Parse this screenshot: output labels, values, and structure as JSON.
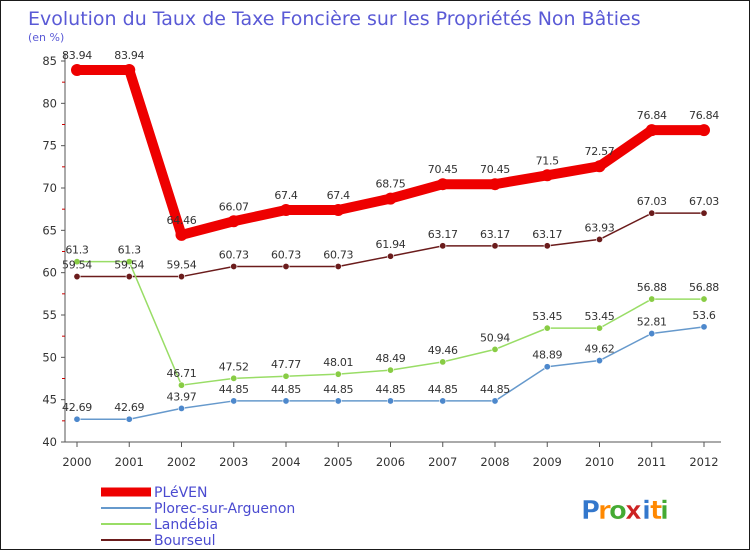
{
  "header": {
    "title": "Evolution du Taux de Taxe Foncière sur les Propriétés Non Bâties",
    "unit": "(en %)"
  },
  "logo": {
    "text": "Proxiti",
    "letters": [
      "P",
      "r",
      "o",
      "x",
      "i",
      "t",
      "i"
    ]
  },
  "colors": {
    "title": "#5a5ad6",
    "axis": "#555555",
    "tick_red": "#cc0000",
    "legend_text": "#4a4ad0"
  },
  "chart_data": {
    "type": "line",
    "title": "Evolution du Taux de Taxe Foncière sur les Propriétés Non Bâties",
    "ylabel": "(en %)",
    "xlabel": "",
    "categories": [
      "2000",
      "2001",
      "2002",
      "2003",
      "2004",
      "2005",
      "2006",
      "2007",
      "2008",
      "2009",
      "2010",
      "2011",
      "2012"
    ],
    "ylim": [
      40,
      85
    ],
    "yticks": [
      40,
      45,
      50,
      55,
      60,
      65,
      70,
      75,
      80,
      85
    ],
    "grid": false,
    "legend_position": "bottom-left",
    "series": [
      {
        "name": "Bourseul",
        "color": "#6b1c1c",
        "marker": "#6b1c1c",
        "values": [
          59.54,
          59.54,
          59.54,
          60.73,
          60.73,
          60.73,
          61.94,
          63.17,
          63.17,
          63.17,
          63.93,
          67.03,
          67.03
        ],
        "labels": [
          "59.54",
          "59.54",
          "59.54",
          "60.73",
          "60.73",
          "60.73",
          "61.94",
          "63.17",
          "63.17",
          "63.17",
          "63.93",
          "67.03",
          "67.03"
        ]
      },
      {
        "name": "Landébia",
        "color": "#99dd66",
        "marker": "#88cc44",
        "values": [
          61.3,
          61.3,
          46.71,
          47.52,
          47.77,
          48.01,
          48.49,
          49.46,
          50.94,
          53.45,
          53.45,
          56.88,
          56.88
        ],
        "labels": [
          "61.3",
          "61.3",
          "46.71",
          "47.52",
          "47.77",
          "48.01",
          "48.49",
          "49.46",
          "50.94",
          "53.45",
          "53.45",
          "56.88",
          "56.88"
        ]
      },
      {
        "name": "Plorec-sur-Arguenon",
        "color": "#6699cc",
        "marker": "#4d88cc",
        "values": [
          42.69,
          42.69,
          43.97,
          44.85,
          44.85,
          44.85,
          44.85,
          44.85,
          44.85,
          48.89,
          49.62,
          52.81,
          53.6
        ],
        "labels": [
          "42.69",
          "42.69",
          "43.97",
          "44.85",
          "44.85",
          "44.85",
          "44.85",
          "44.85",
          "44.85",
          "48.89",
          "49.62",
          "52.81",
          "53.6"
        ]
      },
      {
        "name": "PLéVEN",
        "color": "#ee0000",
        "marker": "#ee0000",
        "values": [
          83.94,
          83.94,
          64.46,
          66.07,
          67.4,
          67.4,
          68.75,
          70.45,
          70.45,
          71.5,
          72.57,
          76.84,
          76.84
        ],
        "labels": [
          "83.94",
          "83.94",
          "64.46",
          "66.07",
          "67.4",
          "67.4",
          "68.75",
          "70.45",
          "70.45",
          "71.5",
          "72.57",
          "76.84",
          "76.84"
        ]
      }
    ],
    "legend": [
      "PLéVEN",
      "Plorec-sur-Arguenon",
      "Landébia",
      "Bourseul"
    ]
  }
}
